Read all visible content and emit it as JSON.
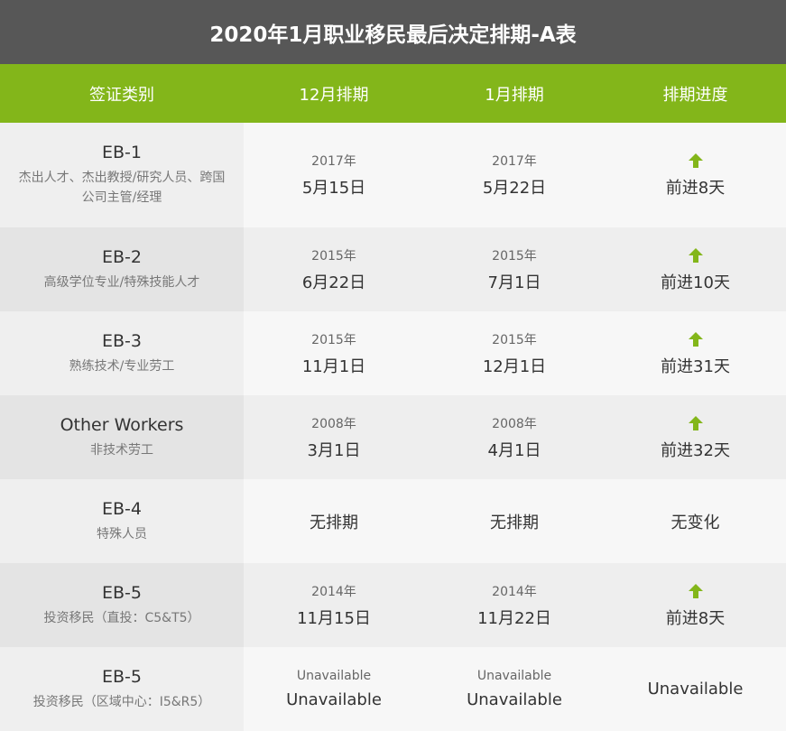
{
  "title": "2020年1月职业移民最后决定排期-A表",
  "headers": {
    "category": "签证类别",
    "dec": "12月排期",
    "jan": "1月排期",
    "progress": "排期进度"
  },
  "accent_color": "#83b61a",
  "rows": [
    {
      "name": "EB-1",
      "desc": "杰出人才、杰出教授/研究人员、跨国公司主管/经理",
      "dec_year": "2017年",
      "dec_date": "5月15日",
      "jan_year": "2017年",
      "jan_date": "5月22日",
      "progress": "前进8天",
      "arrow": true
    },
    {
      "name": "EB-2",
      "desc": "高级学位专业/特殊技能人才",
      "dec_year": "2015年",
      "dec_date": "6月22日",
      "jan_year": "2015年",
      "jan_date": "7月1日",
      "progress": "前进10天",
      "arrow": true
    },
    {
      "name": "EB-3",
      "desc": "熟练技术/专业劳工",
      "dec_year": "2015年",
      "dec_date": "11月1日",
      "jan_year": "2015年",
      "jan_date": "12月1日",
      "progress": "前进31天",
      "arrow": true
    },
    {
      "name": "Other Workers",
      "desc": "非技术劳工",
      "dec_year": "2008年",
      "dec_date": "3月1日",
      "jan_year": "2008年",
      "jan_date": "4月1日",
      "progress": "前进32天",
      "arrow": true
    },
    {
      "name": "EB-4",
      "desc": "特殊人员",
      "dec_single": "无排期",
      "jan_single": "无排期",
      "progress": "无变化",
      "arrow": false
    },
    {
      "name": "EB-5",
      "desc": "投资移民（直投：C5&T5）",
      "dec_year": "2014年",
      "dec_date": "11月15日",
      "jan_year": "2014年",
      "jan_date": "11月22日",
      "progress": "前进8天",
      "arrow": true
    },
    {
      "name": "EB-5",
      "desc": "投资移民（区域中心：I5&R5）",
      "dec_year": "Unavailable",
      "dec_date": "Unavailable",
      "jan_year": "Unavailable",
      "jan_date": "Unavailable",
      "progress": "Unavailable",
      "arrow": false
    }
  ]
}
